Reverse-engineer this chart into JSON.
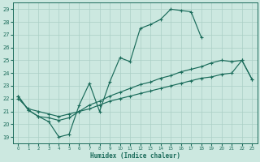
{
  "xlabel": "Humidex (Indice chaleur)",
  "bg_color": "#cce8e0",
  "grid_color": "#aacfc5",
  "line_color": "#1a6b5a",
  "xlim": [
    -0.5,
    23.5
  ],
  "ylim": [
    18.5,
    29.5
  ],
  "xticks": [
    0,
    1,
    2,
    3,
    4,
    5,
    6,
    7,
    8,
    9,
    10,
    11,
    12,
    13,
    14,
    15,
    16,
    17,
    18,
    19,
    20,
    21,
    22,
    23
  ],
  "yticks": [
    19,
    20,
    21,
    22,
    23,
    24,
    25,
    26,
    27,
    28,
    29
  ],
  "line1_x": [
    0,
    1,
    2,
    3,
    4,
    5,
    6,
    7,
    8,
    9,
    10,
    11,
    12,
    13,
    14,
    15,
    16,
    17,
    18
  ],
  "line1_y": [
    22.2,
    21.1,
    20.6,
    20.2,
    19.0,
    19.2,
    21.5,
    23.2,
    21.0,
    23.3,
    25.2,
    24.9,
    27.5,
    27.8,
    28.2,
    29.0,
    28.9,
    28.8,
    26.8
  ],
  "line2_x": [
    0,
    1,
    2,
    3,
    4,
    5,
    6,
    7,
    8,
    9,
    10,
    11,
    12,
    13,
    14,
    15,
    16,
    17,
    18,
    19,
    20,
    21,
    22,
    23
  ],
  "line2_y": [
    22.2,
    21.1,
    20.6,
    20.5,
    20.3,
    20.5,
    21.0,
    21.5,
    21.8,
    22.2,
    22.5,
    22.8,
    23.1,
    23.3,
    23.6,
    23.8,
    24.1,
    24.3,
    24.5,
    24.8,
    25.0,
    24.9,
    25.0,
    23.5
  ],
  "line3_x": [
    0,
    1,
    2,
    3,
    4,
    5,
    6,
    7,
    8,
    9,
    10,
    11,
    12,
    13,
    14,
    15,
    16,
    17,
    18,
    19,
    20,
    21,
    22,
    23
  ],
  "line3_y": [
    22.0,
    21.2,
    21.0,
    20.8,
    20.6,
    20.8,
    21.0,
    21.2,
    21.5,
    21.8,
    22.0,
    22.2,
    22.4,
    22.6,
    22.8,
    23.0,
    23.2,
    23.4,
    23.6,
    23.7,
    23.9,
    24.0,
    25.0,
    23.5
  ],
  "figsize": [
    3.2,
    2.0
  ],
  "dpi": 100
}
